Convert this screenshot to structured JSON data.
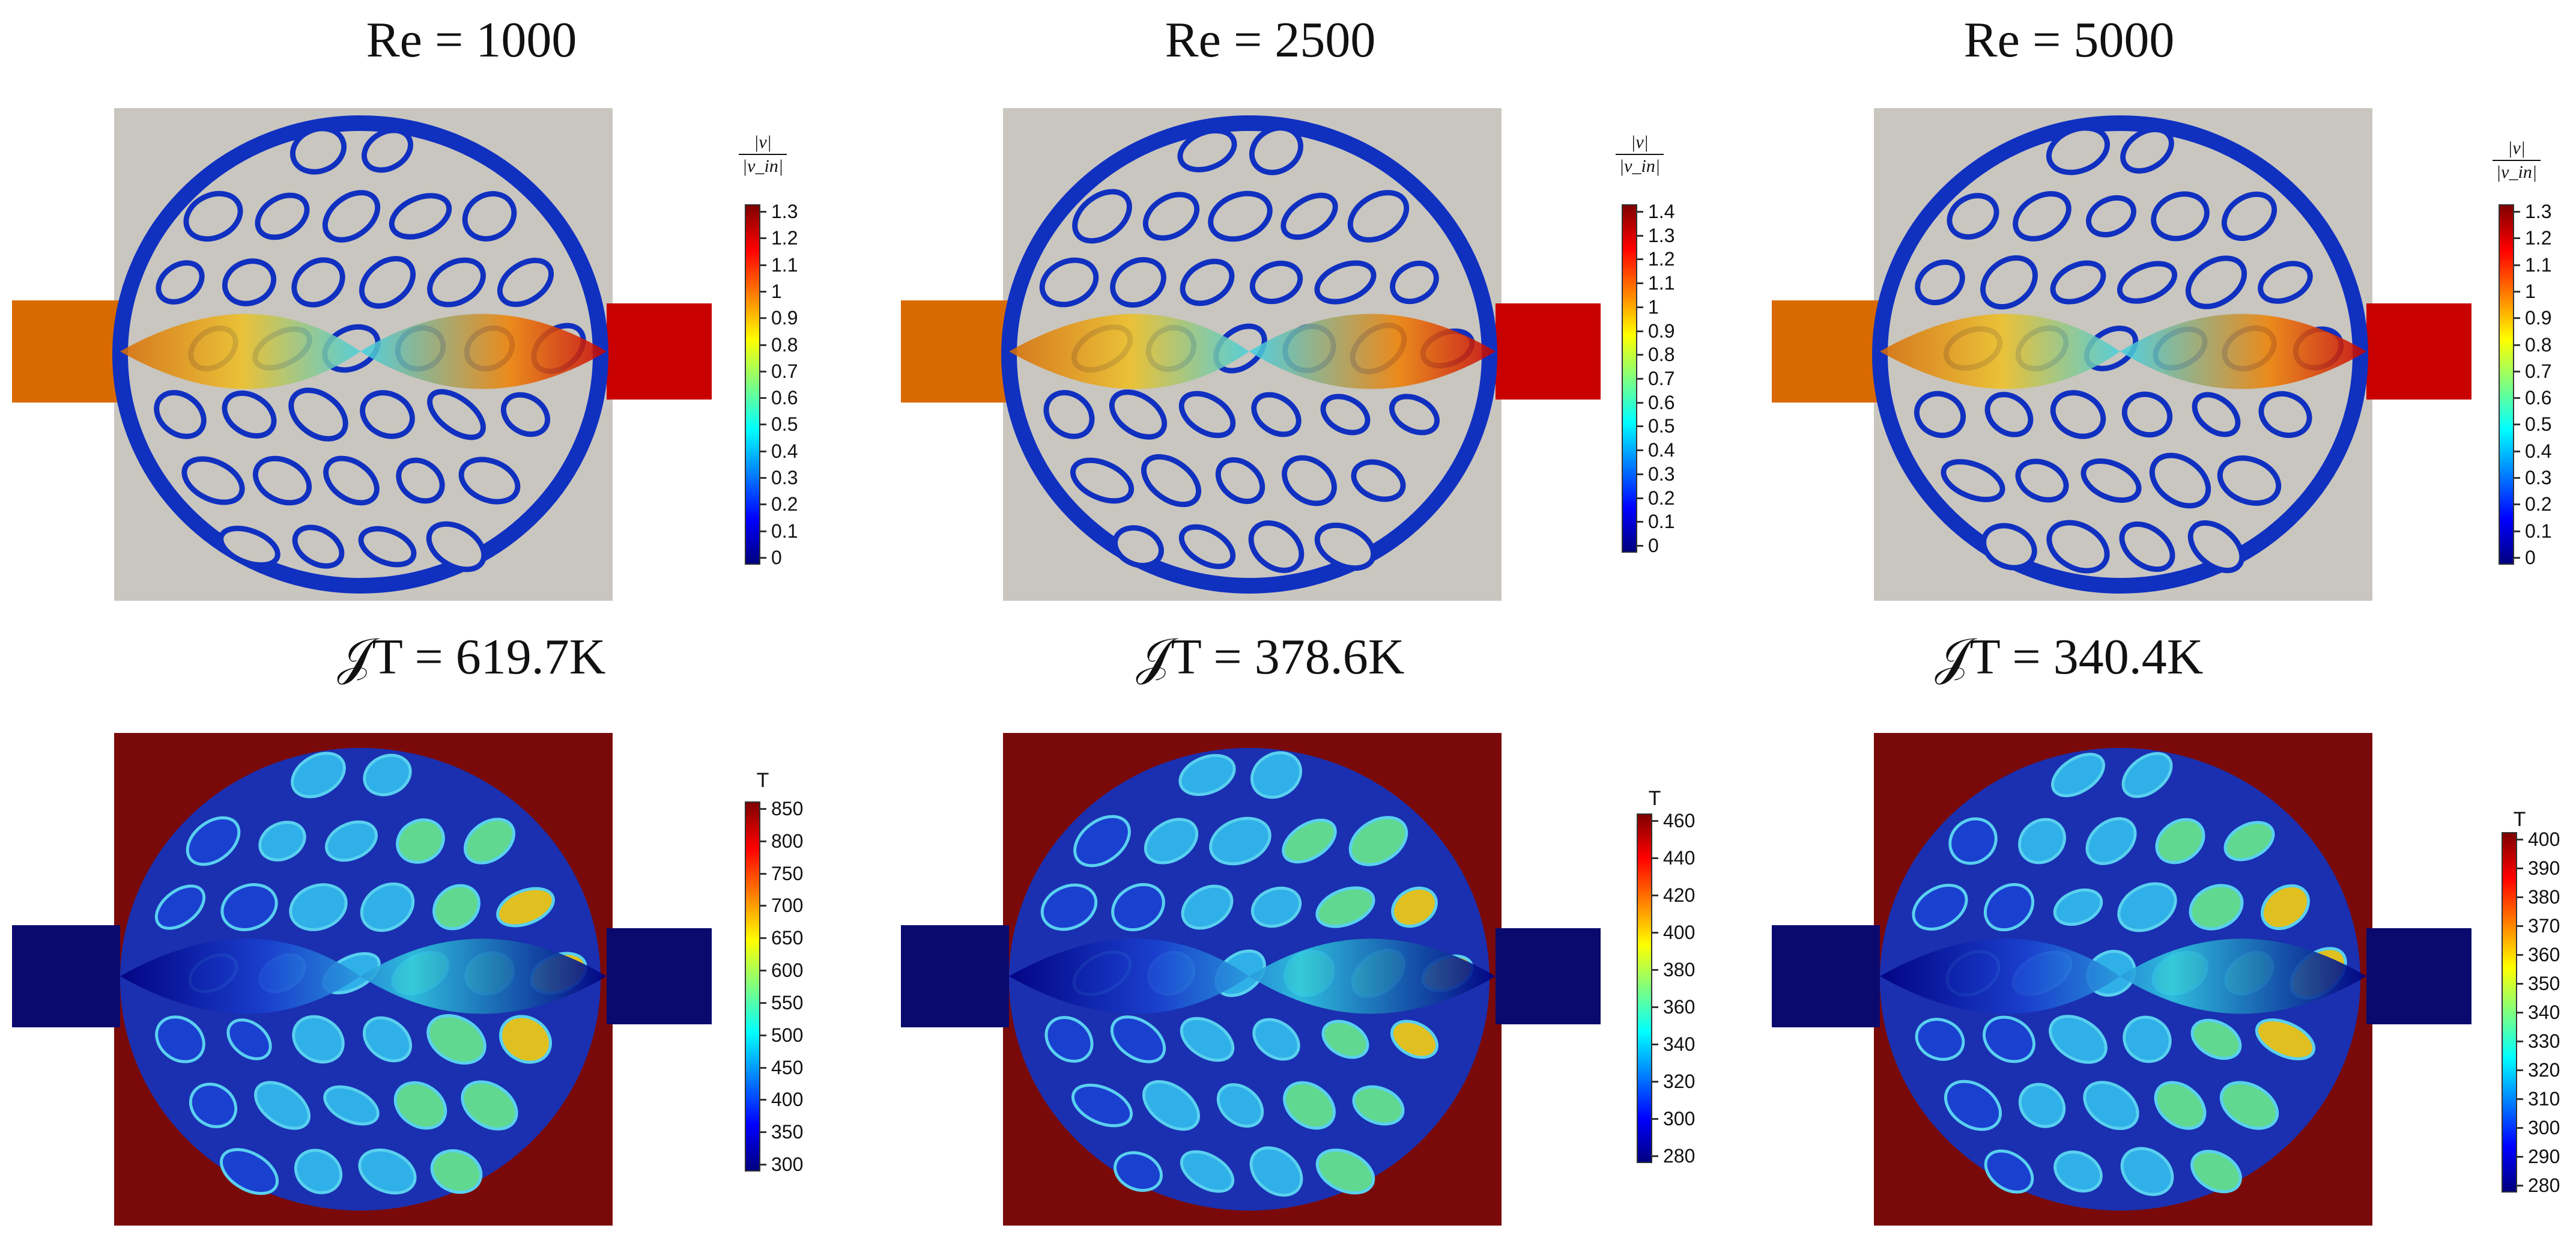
{
  "top_row": {
    "titles": [
      "Re = 1000",
      "Re = 2500",
      "Re = 5000"
    ],
    "colorbar_label_numerator": "|v|",
    "colorbar_label_denominator": "|v_in|",
    "colorbars": [
      [
        "1.3",
        "1.2",
        "1.1",
        "1",
        "0.9",
        "0.8",
        "0.7",
        "0.6",
        "0.5",
        "0.4",
        "0.3",
        "0.2",
        "0.1",
        "0"
      ],
      [
        "1.4",
        "1.3",
        "1.2",
        "1.1",
        "1",
        "0.9",
        "0.8",
        "0.7",
        "0.6",
        "0.5",
        "0.4",
        "0.3",
        "0.2",
        "0.1",
        "0"
      ],
      [
        "1.3",
        "1.2",
        "1.1",
        "1",
        "0.9",
        "0.8",
        "0.7",
        "0.6",
        "0.5",
        "0.4",
        "0.3",
        "0.2",
        "0.1",
        "0"
      ]
    ]
  },
  "bottom_row": {
    "titles": [
      "𝒥T = 619.7K",
      "𝒥T = 378.6K",
      "𝒥T = 340.4K"
    ],
    "colorbar_label": "T",
    "colorbars": [
      [
        "850",
        "800",
        "750",
        "700",
        "650",
        "600",
        "550",
        "500",
        "450",
        "400",
        "350",
        "300"
      ],
      [
        "460",
        "440",
        "420",
        "400",
        "380",
        "360",
        "340",
        "320",
        "300",
        "280"
      ],
      [
        "400",
        "390",
        "380",
        "370",
        "360",
        "350",
        "340",
        "330",
        "320",
        "310",
        "300",
        "290",
        "280"
      ]
    ]
  },
  "colors": {
    "solid_gray": "#c9c6bf",
    "dark_red": "#7a0a0a",
    "navy": "#0a0a6e",
    "jet": [
      "#00007f",
      "#0000ff",
      "#007fff",
      "#00ffff",
      "#7fff7f",
      "#ffff00",
      "#ff7f00",
      "#ff0000",
      "#7f0000"
    ]
  }
}
